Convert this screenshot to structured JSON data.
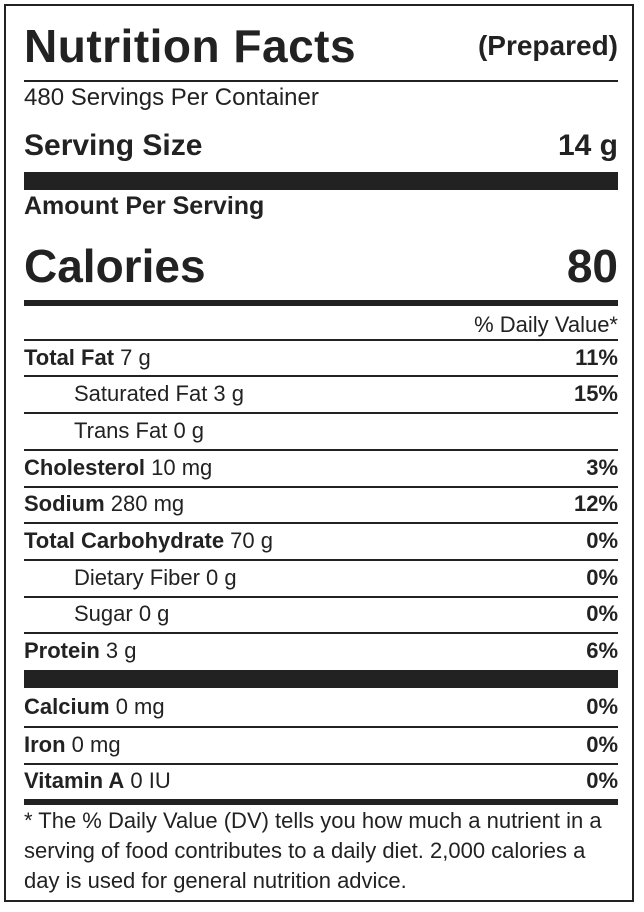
{
  "title": "Nutrition Facts",
  "subtitle": "(Prepared)",
  "servings_per_container": "480 Servings Per Container",
  "serving_size_label": "Serving Size",
  "serving_size_value": "14 g",
  "amount_per_serving": "Amount Per Serving",
  "calories_label": "Calories",
  "calories_value": "80",
  "daily_value_header": "% Daily Value*",
  "nutrients": [
    {
      "name": "Total Fat",
      "amount": " 7 g",
      "percent": "11%"
    },
    {
      "name": "Saturated Fat",
      "amount": " 3 g",
      "percent": "15%"
    },
    {
      "name": "Trans Fat",
      "amount": " 0 g",
      "percent": ""
    },
    {
      "name": "Cholesterol",
      "amount": " 10 mg",
      "percent": "3%"
    },
    {
      "name": "Sodium",
      "amount": " 280 mg",
      "percent": "12%"
    },
    {
      "name": "Total Carbohydrate",
      "amount": " 70 g",
      "percent": "0%"
    },
    {
      "name": "Dietary Fiber",
      "amount": " 0 g",
      "percent": "0%"
    },
    {
      "name": "Sugar",
      "amount": " 0 g",
      "percent": "0%"
    },
    {
      "name": "Protein",
      "amount": " 3 g",
      "percent": "6%"
    }
  ],
  "minerals": [
    {
      "name": "Calcium",
      "amount": " 0 mg",
      "percent": "0%"
    },
    {
      "name": "Iron",
      "amount": " 0 mg",
      "percent": "0%"
    },
    {
      "name": "Vitamin A",
      "amount": " 0 IU",
      "percent": "0%"
    }
  ],
  "footnote": "* The % Daily Value (DV) tells you how much a nutrient in a serving of food contributes to a daily diet. 2,000 calories a day is used for general nutrition advice."
}
